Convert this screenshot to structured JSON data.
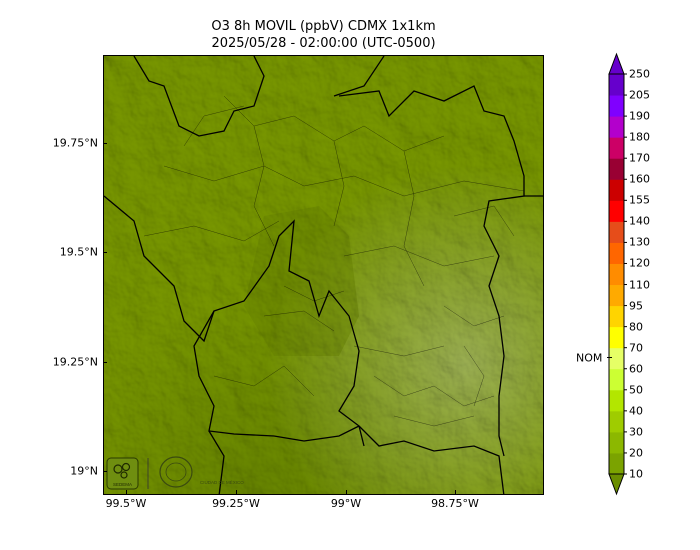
{
  "title_line1": "O3 8h MOVIL (ppbV) CDMX 1x1km",
  "title_line2": "2025/05/28 - 02:00:00 (UTC-0500)",
  "y_ticks": [
    "19.75°N",
    "19.5°N",
    "19.25°N",
    "19°N"
  ],
  "x_ticks": [
    "99.5°W",
    "99.25°W",
    "99°W",
    "98.75°W"
  ],
  "colorbar": {
    "levels": [
      "10",
      "20",
      "30",
      "40",
      "50",
      "60",
      "70",
      "80",
      "95",
      "110",
      "120",
      "130",
      "140",
      "155",
      "160",
      "170",
      "180",
      "190",
      "205",
      "250"
    ],
    "colors": [
      "#6b8e00",
      "#7ba300",
      "#8cb800",
      "#9fcc00",
      "#b3e600",
      "#ccff33",
      "#e6ff66",
      "#ffff00",
      "#ffd400",
      "#ffaa00",
      "#ff8c00",
      "#ff6600",
      "#e64d1a",
      "#ff0000",
      "#cc0000",
      "#990033",
      "#cc0066",
      "#b300cc",
      "#8000ff",
      "#6600cc"
    ],
    "nom_label": "NOM",
    "nom_value": 65
  },
  "logos": {
    "left": "SEDEMA",
    "right": "CIUDAD DE MÉXICO"
  }
}
